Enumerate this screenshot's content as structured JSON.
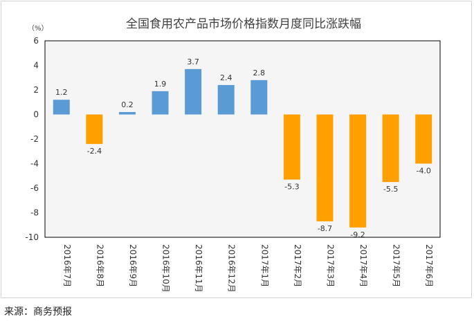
{
  "chart_data": {
    "type": "bar",
    "title": "全国食用农产品市场价格指数月度同比涨跌幅",
    "unit_label": "（%）",
    "categories": [
      "2016年7月",
      "2016年8月",
      "2016年9月",
      "2016年10月",
      "2016年11月",
      "2016年12月",
      "2017年1月",
      "2017年2月",
      "2017年3月",
      "2017年4月",
      "2017年5月",
      "2017年6月"
    ],
    "values": [
      1.2,
      -2.4,
      0.2,
      1.9,
      3.7,
      2.4,
      2.8,
      -5.3,
      -8.7,
      -9.2,
      -5.5,
      -4.0
    ],
    "value_labels": [
      "1.2",
      "-2.4",
      "0.2",
      "1.9",
      "3.7",
      "2.4",
      "2.8",
      "-5.3",
      "-8.7",
      "-9.2",
      "-5.5",
      "-4.0"
    ],
    "ylim": [
      -10,
      6
    ],
    "yticks": [
      -10,
      -8,
      -6,
      -4,
      -2,
      0,
      2,
      4,
      6
    ],
    "grid": false,
    "colors": {
      "positive": "#5b9bd5",
      "negative": "#ffa000",
      "plot_background": "#f5f5f5"
    }
  },
  "source": "来源：商务预报"
}
